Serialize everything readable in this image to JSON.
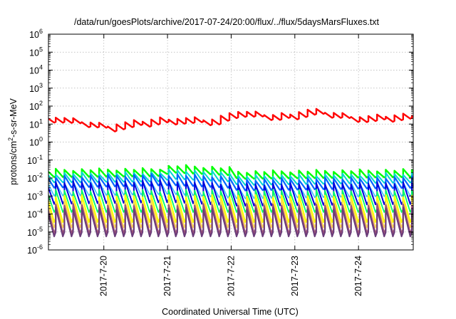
{
  "chart_data": {
    "type": "line",
    "title": "/data/run/goesPlots/archive/2017-07-24/20:00/flux/../flux/5daysMarsFluxes.txt",
    "xlabel": "Coordinated Universal Time (UTC)",
    "ylabel": "protons/cm2-s-sr-MeV",
    "ylabel_base": "protons/cm",
    "ylabel_sup": "2",
    "ylabel_rest": "-s-sr-MeV",
    "y_scale": "log",
    "ylim_exp": [
      -6,
      6
    ],
    "y_ticks": [
      {
        "base": "10",
        "exp": "-6"
      },
      {
        "base": "10",
        "exp": "-5"
      },
      {
        "base": "10",
        "exp": "-4"
      },
      {
        "base": "10",
        "exp": "-3"
      },
      {
        "base": "10",
        "exp": "-2"
      },
      {
        "base": "10",
        "exp": "-1"
      },
      {
        "base": "10",
        "exp": "0"
      },
      {
        "base": "10",
        "exp": "1"
      },
      {
        "base": "10",
        "exp": "2"
      },
      {
        "base": "10",
        "exp": "3"
      },
      {
        "base": "10",
        "exp": "4"
      },
      {
        "base": "10",
        "exp": "5"
      },
      {
        "base": "10",
        "exp": "6"
      }
    ],
    "x_range_days": [
      19.13,
      24.86
    ],
    "x_ticks": [
      {
        "label": "2017-7-20",
        "day": 20
      },
      {
        "label": "2017-7-21",
        "day": 21
      },
      {
        "label": "2017-7-22",
        "day": 22
      },
      {
        "label": "2017-7-23",
        "day": 23
      },
      {
        "label": "2017-7-24",
        "day": 24
      }
    ],
    "grid": true,
    "series": [
      {
        "color": "#ff0000",
        "width": 2.4,
        "teeth": 42,
        "hi": 1.55,
        "lo": 1.1,
        "trend": [
          [
            0,
            1.45
          ],
          [
            0.16,
            0.95
          ],
          [
            0.32,
            1.35
          ],
          [
            0.46,
            1.25
          ],
          [
            0.5,
            1.75
          ],
          [
            0.62,
            1.5
          ],
          [
            0.72,
            1.8
          ],
          [
            0.86,
            1.4
          ],
          [
            1,
            1.55
          ]
        ]
      },
      {
        "color": "#00ff00",
        "width": 2.4,
        "teeth": 42,
        "hi": -1.55,
        "lo": -1.95,
        "trend": [
          [
            0,
            0
          ],
          [
            0.3,
            0.05
          ],
          [
            0.34,
            0.25
          ],
          [
            0.5,
            0.1
          ],
          [
            0.52,
            -0.1
          ],
          [
            1,
            0
          ]
        ]
      },
      {
        "color": "#00d8d0",
        "width": 2,
        "teeth": 42,
        "hi": -1.75,
        "lo": -2.25,
        "trend": [
          [
            0,
            0
          ],
          [
            0.3,
            0.05
          ],
          [
            0.34,
            0.2
          ],
          [
            0.5,
            0.05
          ],
          [
            0.52,
            -0.15
          ],
          [
            1,
            0
          ]
        ]
      },
      {
        "color": "#0066ff",
        "width": 2.2,
        "teeth": 42,
        "hi": -1.95,
        "lo": -2.55,
        "trend": [
          [
            0,
            0
          ],
          [
            0.34,
            0.15
          ],
          [
            0.5,
            0
          ],
          [
            0.52,
            -0.15
          ],
          [
            1,
            0
          ]
        ]
      },
      {
        "color": "#40c0ff",
        "width": 1.6,
        "teeth": 42,
        "hi": -2.25,
        "lo": -3.0,
        "trend": [
          [
            0,
            0
          ],
          [
            0.34,
            0.1
          ],
          [
            0.52,
            -0.15
          ],
          [
            1,
            0
          ]
        ]
      },
      {
        "color": "#0000dd",
        "width": 2,
        "teeth": 42,
        "hi": -2.25,
        "lo": -3.45,
        "trend": [
          [
            0,
            0
          ],
          [
            0.34,
            0.1
          ],
          [
            0.52,
            -0.1
          ],
          [
            1,
            0
          ]
        ]
      },
      {
        "color": "#00ff66",
        "width": 1.8,
        "teeth": 42,
        "hi": -2.7,
        "lo": -3.9,
        "trend": [
          [
            0,
            0
          ],
          [
            1,
            0
          ]
        ]
      },
      {
        "color": "#ffff00",
        "width": 2.2,
        "teeth": 42,
        "hi": -3.0,
        "lo": -4.45,
        "trend": [
          [
            0,
            0
          ],
          [
            1,
            0
          ]
        ]
      },
      {
        "color": "#ffd75a",
        "width": 2,
        "teeth": 42,
        "hi": -3.3,
        "lo": -4.75,
        "trend": [
          [
            0,
            0
          ],
          [
            1,
            0
          ]
        ]
      },
      {
        "color": "#a0a07a",
        "width": 1.8,
        "teeth": 42,
        "hi": -3.55,
        "lo": -5.05,
        "trend": [
          [
            0,
            0
          ],
          [
            1,
            0
          ]
        ]
      },
      {
        "color": "#a0507a",
        "width": 2.2,
        "teeth": 42,
        "hi": -3.5,
        "lo": -5.1,
        "trend": [
          [
            0,
            0
          ],
          [
            1,
            0
          ]
        ]
      },
      {
        "color": "#6a3d7a",
        "width": 2,
        "teeth": 42,
        "hi": -3.7,
        "lo": -5.25,
        "trend": [
          [
            0,
            0
          ],
          [
            1,
            0
          ]
        ]
      }
    ]
  }
}
